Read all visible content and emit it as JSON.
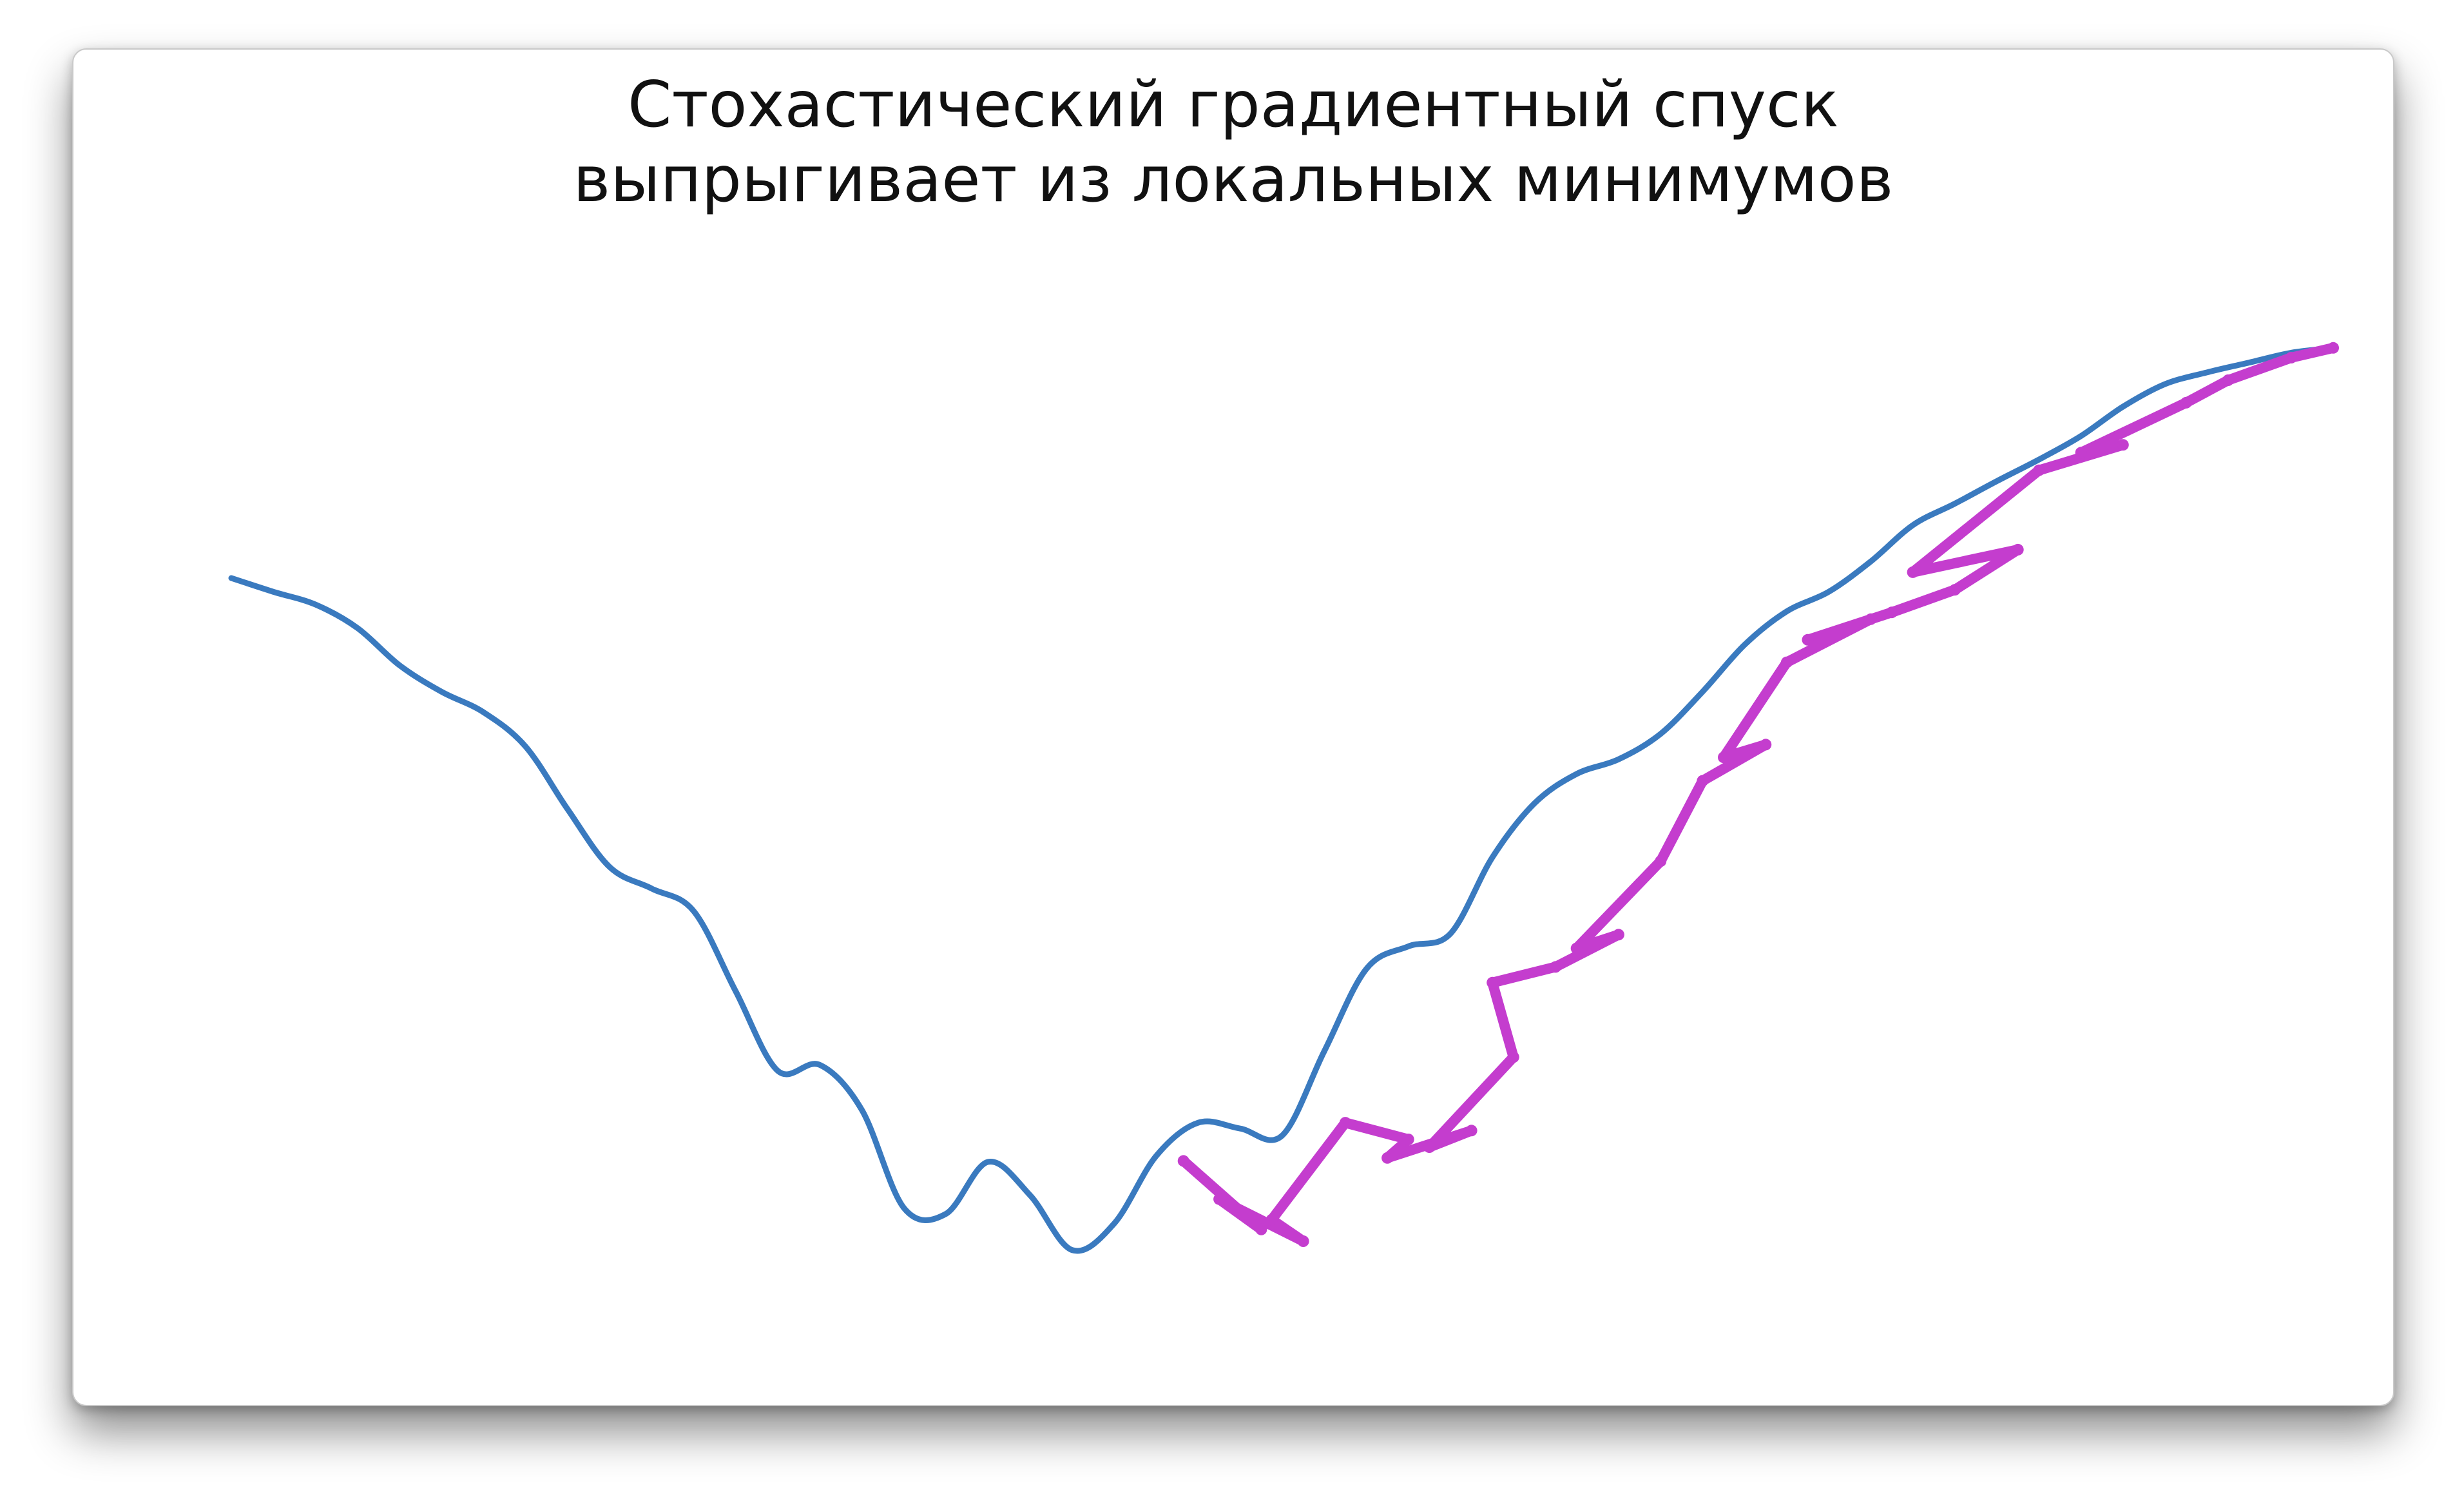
{
  "window": {
    "title_line1": "Стохастический градиентный спуск",
    "title_line2": "выпрыгивает из локальных минимумов"
  },
  "chart_data": {
    "type": "line",
    "title": "Стохастический градиентный спуск выпрыгивает из локальных минимумов",
    "xlabel": "",
    "ylabel": "",
    "axes_visible": false,
    "grid": false,
    "xlim": [
      0,
      100
    ],
    "ylim": [
      0,
      100
    ],
    "series": [
      {
        "role": "loss-curve",
        "color": "#3a7abf",
        "x": [
          0,
          2,
          4,
          6,
          8,
          10,
          12,
          14,
          16,
          18,
          20,
          22,
          24,
          26,
          28,
          30,
          32,
          34,
          36,
          38,
          40,
          42,
          44,
          46,
          48,
          50,
          52,
          54,
          56,
          58,
          60,
          62,
          64,
          66,
          68,
          70,
          72,
          74,
          76,
          78,
          80,
          82,
          84,
          86,
          88,
          90,
          92,
          94,
          96,
          98,
          100
        ],
        "y": [
          75,
          73.6,
          72.3,
          69.9,
          66.1,
          63.4,
          61.3,
          57.8,
          51.4,
          45.5,
          43.3,
          41.0,
          32.8,
          24.7,
          25.3,
          20.7,
          10.7,
          10.1,
          15.4,
          12.0,
          6.4,
          9.1,
          16.0,
          19.4,
          18.8,
          18.1,
          26.7,
          35.1,
          37.4,
          38.7,
          46.5,
          52.0,
          55.0,
          56.5,
          59.1,
          63.4,
          68.2,
          71.6,
          73.6,
          76.7,
          80.4,
          82.6,
          84.9,
          87.1,
          89.5,
          92.5,
          94.8,
          96.0,
          97.0,
          98.0,
          98.5
        ]
      },
      {
        "role": "sgd-trajectory",
        "color": "#c43dce",
        "x": [
          45.3,
          49,
          47,
          51,
          49.5,
          53,
          56,
          55,
          59,
          57,
          61,
          60,
          63,
          66,
          64,
          68,
          70,
          73,
          71,
          74,
          78,
          75,
          79,
          82,
          85,
          80,
          86,
          90,
          88,
          93,
          95,
          98,
          100
        ],
        "y": [
          15.5,
          8.5,
          11.6,
          7.3,
          9.5,
          19.4,
          17.7,
          15.8,
          18.6,
          16.9,
          26.1,
          33.7,
          35.3,
          38.6,
          37.2,
          46.1,
          54.3,
          58.0,
          56.7,
          66.4,
          70.8,
          68.7,
          71.5,
          73.8,
          77.9,
          75.6,
          86.0,
          88.6,
          87.8,
          92.9,
          95.2,
          97.5,
          98.5
        ]
      }
    ]
  }
}
